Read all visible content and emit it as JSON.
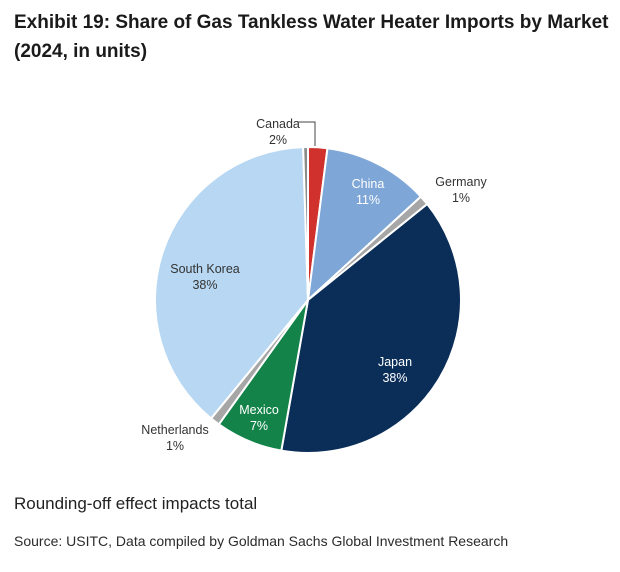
{
  "title": "Exhibit 19: Share of Gas Tankless Water Heater Imports by Market (2024, in units)",
  "footnote": "Rounding-off effect impacts total",
  "source": "Source: USITC, Data compiled by Goldman Sachs Global Investment Research",
  "chart_data": {
    "type": "pie",
    "title": "Exhibit 19: Share of Gas Tankless Water Heater Imports by Market (2024, in units)",
    "start_angle_deg": 0,
    "direction": "clockwise",
    "slices": [
      {
        "label": "Canada",
        "value": 2,
        "value_label": "2%",
        "color": "#d0312d"
      },
      {
        "label": "China",
        "value": 11,
        "value_label": "11%",
        "color": "#7ea6d6"
      },
      {
        "label": "Germany",
        "value": 1,
        "value_label": "1%",
        "color": "#a6a6a6"
      },
      {
        "label": "Japan",
        "value": 38,
        "value_label": "38%",
        "color": "#0b2e59"
      },
      {
        "label": "Mexico",
        "value": 7,
        "value_label": "7%",
        "color": "#13834a"
      },
      {
        "label": "Netherlands",
        "value": 1,
        "value_label": "1%",
        "color": "#a6a6a6"
      },
      {
        "label": "South Korea",
        "value": 38,
        "value_label": "38%",
        "color": "#b7d7f2"
      },
      {
        "label": "",
        "value": 0.5,
        "value_label": "",
        "color": "#8c8c8c"
      }
    ]
  }
}
